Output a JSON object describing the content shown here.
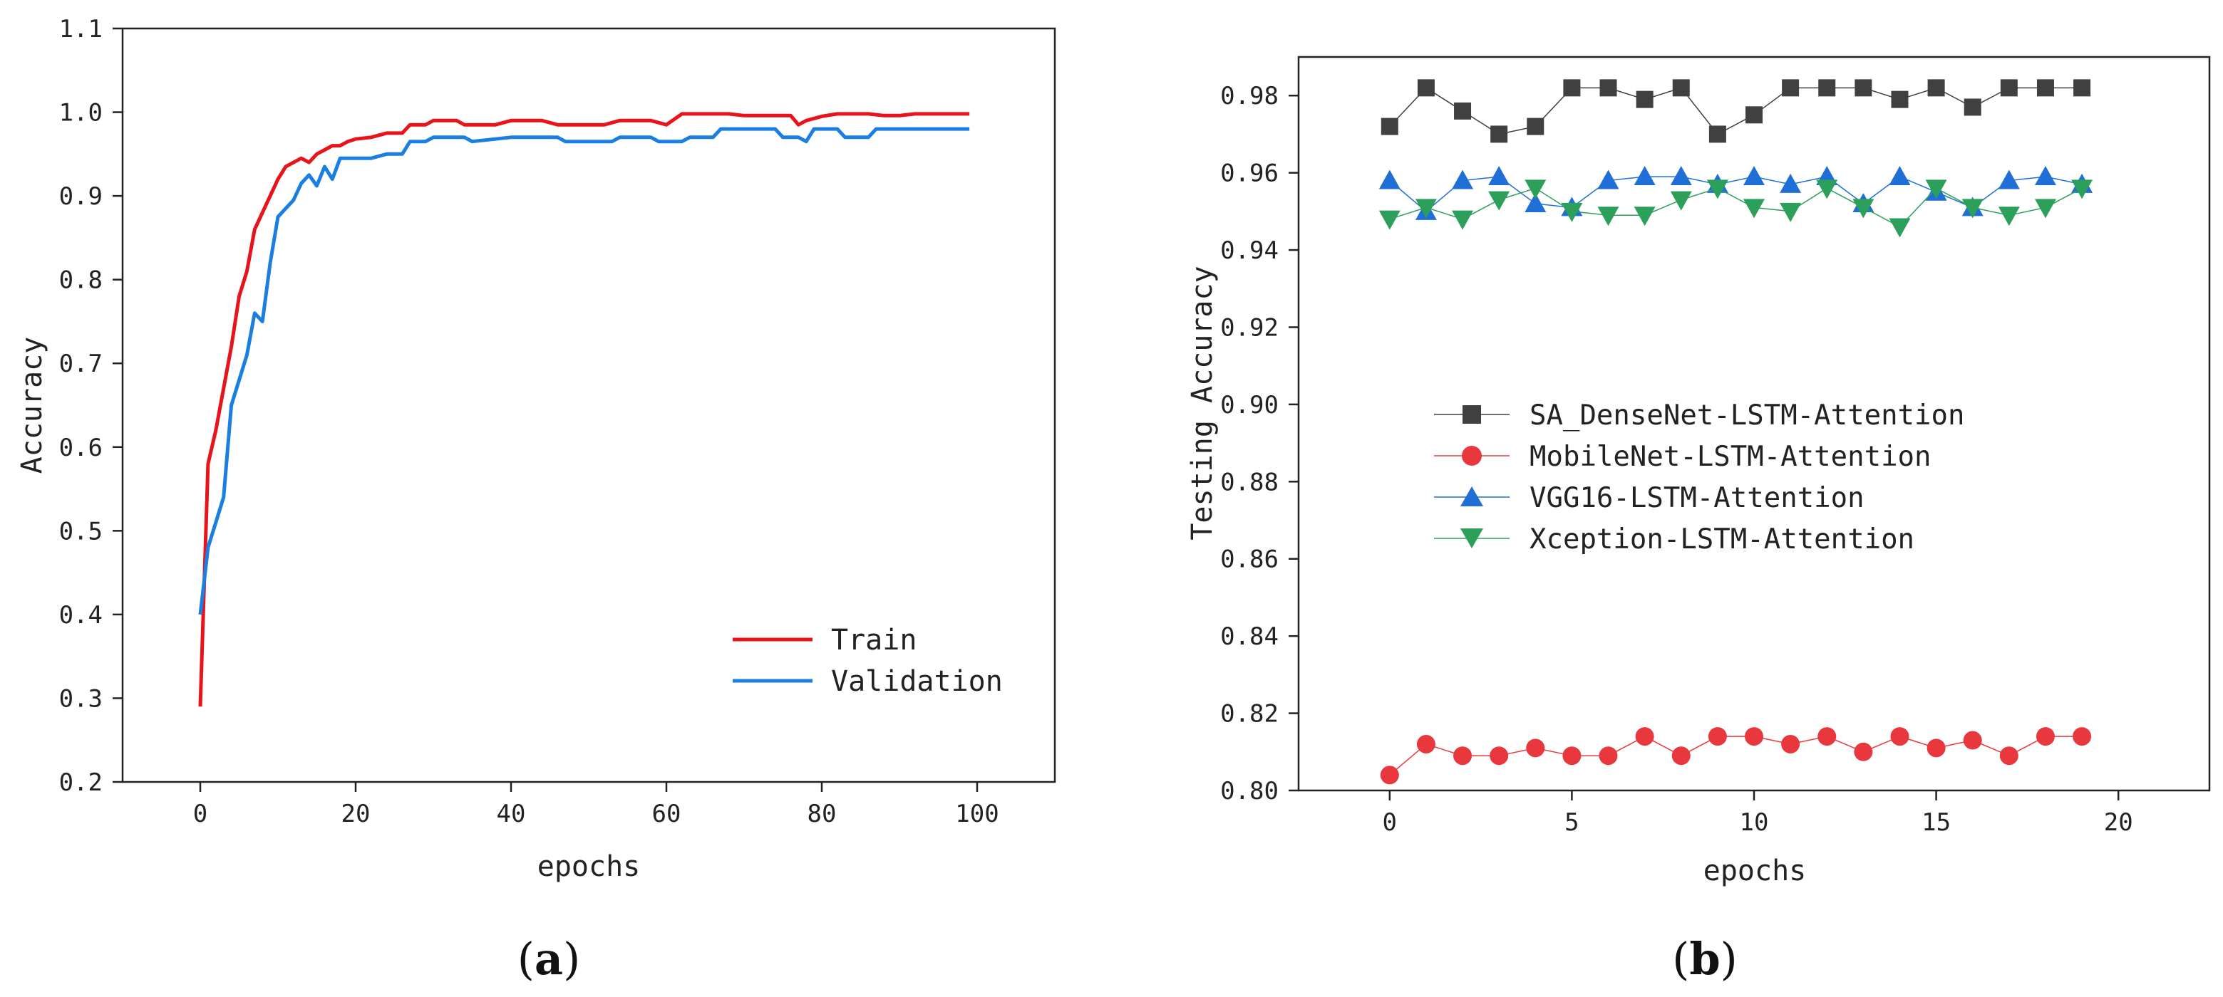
{
  "chart_data": [
    {
      "type": "line",
      "panel_label": "a",
      "xlabel": "epochs",
      "ylabel": "Accuracy",
      "xlim": [
        -10,
        110
      ],
      "ylim": [
        0.2,
        1.1
      ],
      "xticks": [
        0,
        20,
        40,
        60,
        80,
        100
      ],
      "yticks": [
        0.2,
        0.3,
        0.4,
        0.5,
        0.6,
        0.7,
        0.8,
        0.9,
        1.0,
        1.1
      ],
      "ytick_labels": [
        "0.2",
        "0.3",
        "0.4",
        "0.5",
        "0.6",
        "0.7",
        "0.8",
        "0.9",
        "1.0",
        "1.1"
      ],
      "grid": false,
      "legend_position": "bottom-right",
      "series": [
        {
          "name": "Train",
          "color": "#e8141c",
          "x": [
            0,
            1,
            2,
            3,
            4,
            5,
            6,
            7,
            8,
            9,
            10,
            11,
            12,
            13,
            14,
            15,
            16,
            17,
            18,
            19,
            20,
            22,
            24,
            26,
            27,
            29,
            30,
            33,
            34,
            36,
            38,
            40,
            44,
            46,
            48,
            52,
            54,
            58,
            60,
            62,
            66,
            68,
            70,
            74,
            76,
            77,
            78,
            80,
            82,
            86,
            88,
            90,
            92,
            95,
            99
          ],
          "y": [
            0.29,
            0.58,
            0.62,
            0.67,
            0.72,
            0.78,
            0.81,
            0.86,
            0.88,
            0.9,
            0.92,
            0.935,
            0.94,
            0.945,
            0.94,
            0.95,
            0.955,
            0.96,
            0.96,
            0.965,
            0.968,
            0.97,
            0.975,
            0.975,
            0.985,
            0.985,
            0.99,
            0.99,
            0.985,
            0.985,
            0.985,
            0.99,
            0.99,
            0.985,
            0.985,
            0.985,
            0.99,
            0.99,
            0.985,
            0.998,
            0.998,
            0.998,
            0.996,
            0.996,
            0.996,
            0.985,
            0.99,
            0.995,
            0.998,
            0.998,
            0.996,
            0.996,
            0.998,
            0.998,
            0.998
          ]
        },
        {
          "name": "Validation",
          "color": "#1a7fe0",
          "x": [
            0,
            1,
            2,
            3,
            4,
            5,
            6,
            7,
            8,
            9,
            10,
            11,
            12,
            13,
            14,
            15,
            16,
            17,
            18,
            20,
            22,
            24,
            26,
            27,
            29,
            30,
            34,
            35,
            40,
            46,
            47,
            53,
            54,
            58,
            59,
            62,
            63,
            66,
            67,
            74,
            75,
            77,
            78,
            79,
            82,
            83,
            86,
            87,
            99
          ],
          "y": [
            0.4,
            0.48,
            0.51,
            0.54,
            0.65,
            0.68,
            0.71,
            0.76,
            0.75,
            0.82,
            0.875,
            0.885,
            0.895,
            0.915,
            0.925,
            0.912,
            0.935,
            0.92,
            0.945,
            0.945,
            0.945,
            0.95,
            0.95,
            0.965,
            0.965,
            0.97,
            0.97,
            0.965,
            0.97,
            0.97,
            0.965,
            0.965,
            0.97,
            0.97,
            0.965,
            0.965,
            0.97,
            0.97,
            0.98,
            0.98,
            0.97,
            0.97,
            0.965,
            0.98,
            0.98,
            0.97,
            0.97,
            0.98,
            0.98
          ]
        }
      ]
    },
    {
      "type": "line",
      "panel_label": "b",
      "xlabel": "epochs",
      "ylabel": "Testing Accuracy",
      "xlim": [
        -2.5,
        22.5
      ],
      "ylim": [
        0.8,
        0.99
      ],
      "xticks": [
        0,
        5,
        10,
        15,
        20
      ],
      "yticks": [
        0.8,
        0.82,
        0.84,
        0.86,
        0.88,
        0.9,
        0.92,
        0.94,
        0.96,
        0.98
      ],
      "ytick_labels": [
        "0.80",
        "0.82",
        "0.84",
        "0.86",
        "0.88",
        "0.90",
        "0.92",
        "0.94",
        "0.96",
        "0.98"
      ],
      "grid": false,
      "legend_position": "center-left",
      "series": [
        {
          "name": "SA_DenseNet-LSTM-Attention",
          "marker": "square",
          "color": "#404040",
          "x": [
            0,
            1,
            2,
            3,
            4,
            5,
            6,
            7,
            8,
            9,
            10,
            11,
            12,
            13,
            14,
            15,
            16,
            17,
            18,
            19
          ],
          "y": [
            0.972,
            0.982,
            0.976,
            0.97,
            0.972,
            0.982,
            0.982,
            0.979,
            0.982,
            0.97,
            0.975,
            0.982,
            0.982,
            0.982,
            0.979,
            0.982,
            0.977,
            0.982,
            0.982,
            0.982
          ]
        },
        {
          "name": "MobileNet-LSTM-Attention",
          "marker": "circle",
          "color": "#e8383d",
          "x": [
            0,
            1,
            2,
            3,
            4,
            5,
            6,
            7,
            8,
            9,
            10,
            11,
            12,
            13,
            14,
            15,
            16,
            17,
            18,
            19
          ],
          "y": [
            0.804,
            0.812,
            0.809,
            0.809,
            0.811,
            0.809,
            0.809,
            0.814,
            0.809,
            0.814,
            0.814,
            0.812,
            0.814,
            0.81,
            0.814,
            0.811,
            0.813,
            0.809,
            0.814,
            0.814
          ]
        },
        {
          "name": "VGG16-LSTM-Attention",
          "marker": "triangle-up",
          "color": "#1f6fd6",
          "x": [
            0,
            1,
            2,
            3,
            4,
            5,
            6,
            7,
            8,
            9,
            10,
            11,
            12,
            13,
            14,
            15,
            16,
            17,
            18,
            19
          ],
          "y": [
            0.958,
            0.95,
            0.958,
            0.959,
            0.952,
            0.951,
            0.958,
            0.959,
            0.959,
            0.957,
            0.959,
            0.957,
            0.959,
            0.952,
            0.959,
            0.955,
            0.951,
            0.958,
            0.959,
            0.957
          ]
        },
        {
          "name": "Xception-LSTM-Attention",
          "marker": "triangle-down",
          "color": "#2ca05a",
          "x": [
            0,
            1,
            2,
            3,
            4,
            5,
            6,
            7,
            8,
            9,
            10,
            11,
            12,
            13,
            14,
            15,
            16,
            17,
            18,
            19
          ],
          "y": [
            0.948,
            0.951,
            0.948,
            0.953,
            0.956,
            0.95,
            0.949,
            0.949,
            0.953,
            0.956,
            0.951,
            0.95,
            0.956,
            0.951,
            0.946,
            0.956,
            0.951,
            0.949,
            0.951,
            0.956
          ]
        }
      ]
    }
  ]
}
